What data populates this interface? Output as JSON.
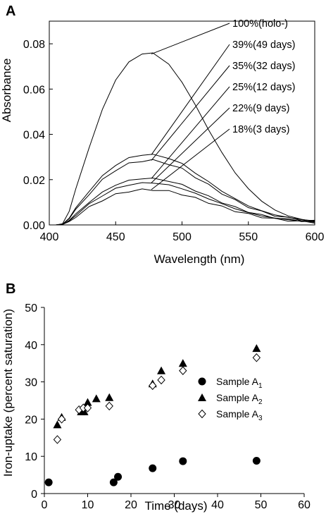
{
  "chart_data": [
    {
      "panel": "A",
      "type": "line",
      "xlabel": "Wavelength (nm)",
      "ylabel": "Absorbance",
      "xlim": [
        400,
        600
      ],
      "ylim": [
        0,
        0.09
      ],
      "xticks": [
        "400",
        "450",
        "500",
        "550",
        "600"
      ],
      "yticks": [
        "0.00",
        "0.02",
        "0.04",
        "0.06",
        "0.08"
      ],
      "x": [
        400,
        405,
        410,
        415,
        420,
        430,
        440,
        450,
        460,
        470,
        478,
        490,
        500,
        510,
        520,
        530,
        540,
        550,
        560,
        570,
        580,
        590,
        600
      ],
      "series": [
        {
          "name": "100%(holo-)",
          "values": [
            0.0,
            0.0,
            0.0005,
            0.006,
            0.016,
            0.034,
            0.051,
            0.064,
            0.072,
            0.0755,
            0.076,
            0.071,
            0.063,
            0.053,
            0.042,
            0.032,
            0.023,
            0.016,
            0.0105,
            0.0066,
            0.004,
            0.0025,
            0.0015
          ]
        },
        {
          "name": "39%(49 days)",
          "values": [
            0.0,
            0.0,
            0.0003,
            0.003,
            0.0073,
            0.015,
            0.0215,
            0.0265,
            0.0295,
            0.031,
            0.031,
            0.0295,
            0.027,
            0.023,
            0.019,
            0.015,
            0.0115,
            0.0085,
            0.0062,
            0.0045,
            0.0033,
            0.0024,
            0.0018
          ]
        },
        {
          "name": "35%(32 days)",
          "values": [
            0.0,
            0.0,
            0.0003,
            0.0027,
            0.0066,
            0.0137,
            0.0198,
            0.0243,
            0.027,
            0.0283,
            0.0285,
            0.027,
            0.0247,
            0.0212,
            0.0176,
            0.014,
            0.0108,
            0.008,
            0.0058,
            0.0042,
            0.0031,
            0.0022,
            0.0017
          ]
        },
        {
          "name": "25%(12 days)",
          "values": [
            0.0,
            0.0,
            0.0002,
            0.002,
            0.0048,
            0.01,
            0.0144,
            0.0177,
            0.0196,
            0.0205,
            0.0205,
            0.0194,
            0.0177,
            0.0152,
            0.0126,
            0.01,
            0.0078,
            0.0058,
            0.0043,
            0.0032,
            0.0024,
            0.0018,
            0.0013
          ]
        },
        {
          "name": "22%(9 days)",
          "values": [
            0.0,
            0.0,
            0.0002,
            0.0018,
            0.0044,
            0.0091,
            0.013,
            0.016,
            0.0177,
            0.0185,
            0.0186,
            0.0176,
            0.0161,
            0.0139,
            0.0116,
            0.0093,
            0.0072,
            0.0054,
            0.004,
            0.003,
            0.0023,
            0.0017,
            0.0012
          ]
        },
        {
          "name": "18%(3 days)",
          "values": [
            0.0,
            0.0,
            0.0002,
            0.0015,
            0.0037,
            0.0077,
            0.011,
            0.0134,
            0.0149,
            0.0155,
            0.0156,
            0.0148,
            0.0136,
            0.0118,
            0.0099,
            0.008,
            0.0062,
            0.0047,
            0.0035,
            0.0026,
            0.002,
            0.0015,
            0.0011
          ]
        }
      ],
      "annotations": [
        {
          "text": "100%(holo-)",
          "x": 478,
          "y": 0.0755
        },
        {
          "text": "39%(49 days)",
          "x": 478,
          "y": 0.031
        },
        {
          "text": "35%(32 days)",
          "x": 478,
          "y": 0.0285
        },
        {
          "text": "25%(12 days)",
          "x": 478,
          "y": 0.0205
        },
        {
          "text": "22%(9 days)",
          "x": 478,
          "y": 0.0186
        },
        {
          "text": "18%(3 days)",
          "x": 478,
          "y": 0.0156
        }
      ]
    },
    {
      "panel": "B",
      "type": "scatter",
      "xlabel": "Time (days)",
      "ylabel": "Iron-uptake (percent saturation)",
      "xlim": [
        0,
        60
      ],
      "ylim": [
        0,
        50
      ],
      "xticks": [
        "0",
        "10",
        "20",
        "30",
        "40",
        "50",
        "60"
      ],
      "yticks": [
        "0",
        "10",
        "20",
        "30",
        "40",
        "50"
      ],
      "legend_position": "right",
      "series": [
        {
          "name": "Sample A",
          "subscript": "1",
          "marker": "filled-circle",
          "points": [
            [
              1,
              3
            ],
            [
              16,
              3
            ],
            [
              17,
              4.5
            ],
            [
              25,
              6.8
            ],
            [
              32,
              8.7
            ],
            [
              49,
              8.8
            ]
          ]
        },
        {
          "name": "Sample A",
          "subscript": "2",
          "marker": "filled-triangle",
          "points": [
            [
              3,
              18.5
            ],
            [
              4,
              20.5
            ],
            [
              8.5,
              22
            ],
            [
              9.2,
              22
            ],
            [
              10,
              24.5
            ],
            [
              12,
              25.5
            ],
            [
              15,
              25.8
            ],
            [
              25,
              29.5
            ],
            [
              27,
              33
            ],
            [
              32,
              35
            ],
            [
              49,
              39
            ]
          ]
        },
        {
          "name": "Sample A",
          "subscript": "3",
          "marker": "open-diamond",
          "points": [
            [
              3,
              14.5
            ],
            [
              4,
              20
            ],
            [
              8,
              22.5
            ],
            [
              9,
              23
            ],
            [
              10,
              23
            ],
            [
              15,
              23.5
            ],
            [
              25,
              29
            ],
            [
              27,
              30.5
            ],
            [
              32,
              33
            ],
            [
              49,
              36.5
            ]
          ]
        }
      ]
    }
  ]
}
